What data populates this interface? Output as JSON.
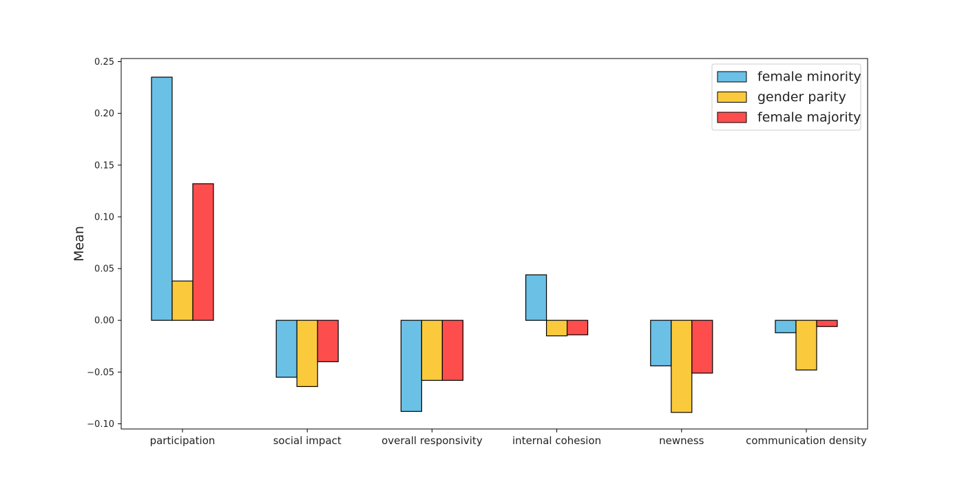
{
  "chart_data": {
    "type": "bar",
    "title": "",
    "xlabel": "",
    "ylabel": "Mean",
    "ylim": [
      -0.105,
      0.253
    ],
    "yticks": [
      -0.1,
      -0.05,
      0.0,
      0.05,
      0.1,
      0.15,
      0.2,
      0.25
    ],
    "ytick_labels": [
      "−0.10",
      "−0.05",
      "0.00",
      "0.05",
      "0.10",
      "0.15",
      "0.20",
      "0.25"
    ],
    "grid": false,
    "legend_position": "top-right",
    "categories": [
      "participation",
      "social impact",
      "overall responsivity",
      "internal cohesion",
      "newness",
      "communication density"
    ],
    "series": [
      {
        "name": "female minority",
        "color": "#6bc0e5",
        "values": [
          0.235,
          -0.055,
          -0.088,
          0.044,
          -0.044,
          -0.012
        ]
      },
      {
        "name": "gender parity",
        "color": "#fbc93c",
        "values": [
          0.038,
          -0.064,
          -0.058,
          -0.015,
          -0.089,
          -0.048
        ]
      },
      {
        "name": "female majority",
        "color": "#fe4d4d",
        "values": [
          0.132,
          -0.04,
          -0.058,
          -0.014,
          -0.051,
          -0.006
        ]
      }
    ]
  }
}
